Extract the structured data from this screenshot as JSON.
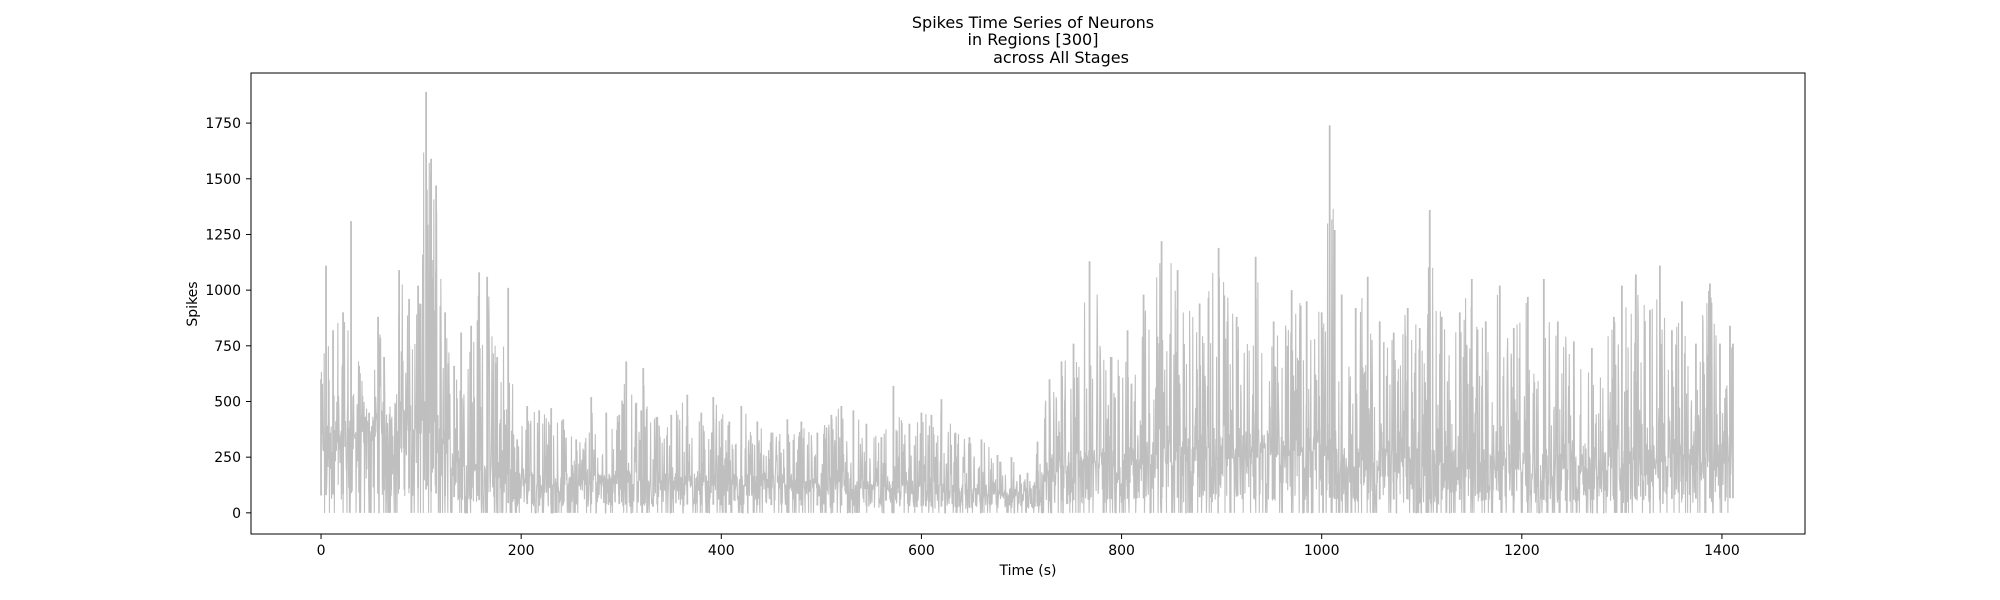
{
  "chart_data": {
    "type": "line",
    "title": "Spikes Time Series of Neurons\nin Regions [300]\n        across All Stages",
    "title_lines": [
      "Spikes Time Series of Neurons",
      "in Regions [300]",
      "across All Stages"
    ],
    "xlabel": "Time (s)",
    "ylabel": "Spikes",
    "xlim": [
      -70,
      1483
    ],
    "ylim": [
      -95,
      1975
    ],
    "xticks": [
      0,
      200,
      400,
      600,
      800,
      1000,
      1200,
      1400
    ],
    "xtick_labels": [
      "0",
      "200",
      "400",
      "600",
      "800",
      "1000",
      "1200",
      "1400"
    ],
    "yticks": [
      0,
      250,
      500,
      750,
      1000,
      1250,
      1500,
      1750
    ],
    "ytick_labels": [
      "0",
      "250",
      "500",
      "750",
      "1000",
      "1250",
      "1500",
      "1750"
    ],
    "grid": false,
    "legend": "none",
    "series_color": "#bfbfbf",
    "x_range": [
      0,
      1411
    ],
    "envelope": [
      [
        0,
        600
      ],
      [
        5,
        1110
      ],
      [
        12,
        820
      ],
      [
        22,
        900
      ],
      [
        30,
        1310
      ],
      [
        38,
        660
      ],
      [
        48,
        450
      ],
      [
        57,
        880
      ],
      [
        63,
        700
      ],
      [
        70,
        420
      ],
      [
        78,
        1090
      ],
      [
        88,
        960
      ],
      [
        97,
        1020
      ],
      [
        105,
        1890
      ],
      [
        110,
        1590
      ],
      [
        115,
        1470
      ],
      [
        124,
        900
      ],
      [
        133,
        660
      ],
      [
        140,
        810
      ],
      [
        150,
        840
      ],
      [
        158,
        1080
      ],
      [
        166,
        1060
      ],
      [
        176,
        700
      ],
      [
        187,
        1010
      ],
      [
        196,
        330
      ],
      [
        206,
        480
      ],
      [
        218,
        460
      ],
      [
        230,
        470
      ],
      [
        242,
        420
      ],
      [
        255,
        330
      ],
      [
        270,
        520
      ],
      [
        285,
        450
      ],
      [
        298,
        440
      ],
      [
        305,
        680
      ],
      [
        320,
        460
      ],
      [
        322,
        650
      ],
      [
        336,
        430
      ],
      [
        350,
        440
      ],
      [
        366,
        530
      ],
      [
        380,
        450
      ],
      [
        392,
        520
      ],
      [
        408,
        410
      ],
      [
        420,
        480
      ],
      [
        436,
        410
      ],
      [
        450,
        360
      ],
      [
        466,
        420
      ],
      [
        480,
        410
      ],
      [
        496,
        360
      ],
      [
        510,
        440
      ],
      [
        520,
        480
      ],
      [
        532,
        460
      ],
      [
        545,
        400
      ],
      [
        560,
        340
      ],
      [
        572,
        570
      ],
      [
        588,
        400
      ],
      [
        600,
        450
      ],
      [
        610,
        440
      ],
      [
        620,
        510
      ],
      [
        634,
        360
      ],
      [
        648,
        340
      ],
      [
        660,
        330
      ],
      [
        676,
        260
      ],
      [
        690,
        250
      ],
      [
        706,
        180
      ],
      [
        716,
        320
      ],
      [
        728,
        600
      ],
      [
        740,
        680
      ],
      [
        752,
        760
      ],
      [
        768,
        1130
      ],
      [
        790,
        700
      ],
      [
        806,
        820
      ],
      [
        822,
        980
      ],
      [
        840,
        1220
      ],
      [
        856,
        1090
      ],
      [
        878,
        940
      ],
      [
        897,
        1190
      ],
      [
        915,
        880
      ],
      [
        934,
        1150
      ],
      [
        952,
        860
      ],
      [
        970,
        1000
      ],
      [
        985,
        950
      ],
      [
        1000,
        900
      ],
      [
        1008,
        1740
      ],
      [
        1013,
        1270
      ],
      [
        1020,
        980
      ],
      [
        1034,
        920
      ],
      [
        1046,
        1060
      ],
      [
        1058,
        860
      ],
      [
        1072,
        810
      ],
      [
        1086,
        920
      ],
      [
        1098,
        830
      ],
      [
        1108,
        1360
      ],
      [
        1120,
        880
      ],
      [
        1138,
        900
      ],
      [
        1150,
        1050
      ],
      [
        1164,
        860
      ],
      [
        1178,
        1020
      ],
      [
        1192,
        830
      ],
      [
        1206,
        970
      ],
      [
        1222,
        1050
      ],
      [
        1236,
        860
      ],
      [
        1252,
        770
      ],
      [
        1270,
        740
      ],
      [
        1292,
        880
      ],
      [
        1300,
        1020
      ],
      [
        1314,
        1070
      ],
      [
        1328,
        910
      ],
      [
        1338,
        1110
      ],
      [
        1350,
        820
      ],
      [
        1360,
        950
      ],
      [
        1374,
        760
      ],
      [
        1388,
        1030
      ],
      [
        1398,
        760
      ],
      [
        1408,
        840
      ],
      [
        1411,
        760
      ]
    ],
    "baseline": [
      [
        0,
        260
      ],
      [
        100,
        380
      ],
      [
        120,
        260
      ],
      [
        180,
        150
      ],
      [
        220,
        120
      ],
      [
        300,
        130
      ],
      [
        400,
        120
      ],
      [
        500,
        110
      ],
      [
        600,
        100
      ],
      [
        680,
        70
      ],
      [
        715,
        90
      ],
      [
        730,
        180
      ],
      [
        800,
        210
      ],
      [
        900,
        240
      ],
      [
        1000,
        260
      ],
      [
        1015,
        200
      ],
      [
        1100,
        200
      ],
      [
        1200,
        190
      ],
      [
        1300,
        200
      ],
      [
        1411,
        220
      ]
    ]
  }
}
